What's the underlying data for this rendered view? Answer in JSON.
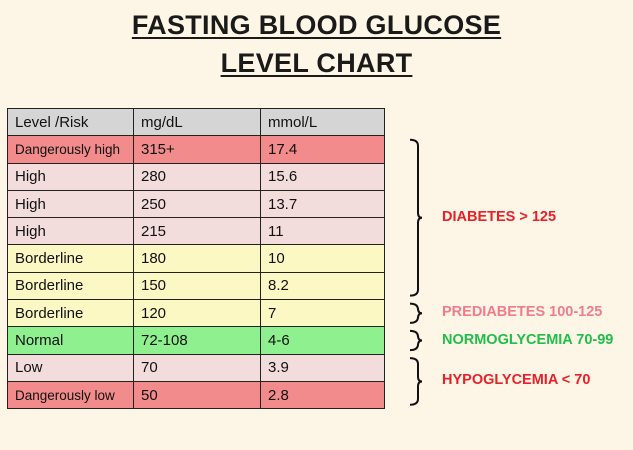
{
  "title_line1": "FASTING BLOOD GLUCOSE",
  "title_line2": "LEVEL CHART",
  "chart_data": {
    "type": "table",
    "columns": [
      "Level /Risk",
      "mg/dL",
      "mmol/L"
    ],
    "rows": [
      {
        "level": "Dangerously high",
        "mgdl": "315+",
        "mmol": "17.4",
        "color": "#f28b8b"
      },
      {
        "level": "High",
        "mgdl": "280",
        "mmol": "15.6",
        "color": "#f3dcdc"
      },
      {
        "level": "High",
        "mgdl": "250",
        "mmol": "13.7",
        "color": "#f3dcdc"
      },
      {
        "level": "High",
        "mgdl": "215",
        "mmol": "11",
        "color": "#f3dcdc"
      },
      {
        "level": "Borderline",
        "mgdl": "180",
        "mmol": "10",
        "color": "#fbf8c4"
      },
      {
        "level": "Borderline",
        "mgdl": "150",
        "mmol": "8.2",
        "color": "#fbf8c4"
      },
      {
        "level": "Borderline",
        "mgdl": "120",
        "mmol": "7",
        "color": "#fbf8c4"
      },
      {
        "level": "Normal",
        "mgdl": "72-108",
        "mmol": "4-6",
        "color": "#8ff08f"
      },
      {
        "level": "Low",
        "mgdl": "70",
        "mmol": "3.9",
        "color": "#f3dcdc"
      },
      {
        "level": "Dangerously low",
        "mgdl": "50",
        "mmol": "2.8",
        "color": "#f28b8b"
      }
    ],
    "header_color": "#d5d5d5",
    "groups": [
      {
        "label": "DIABETES > 125",
        "first_row": 0,
        "last_row": 5,
        "color": "#e8202a"
      },
      {
        "label": "PREDIABETES 100-125",
        "first_row": 6,
        "last_row": 6,
        "color": "#f07c8c"
      },
      {
        "label": "NORMOGLYCEMIA 70-99",
        "first_row": 7,
        "last_row": 7,
        "color": "#1fbf4a"
      },
      {
        "label": "HYPOGLYCEMIA < 70",
        "first_row": 8,
        "last_row": 9,
        "color": "#e8202a"
      }
    ]
  }
}
